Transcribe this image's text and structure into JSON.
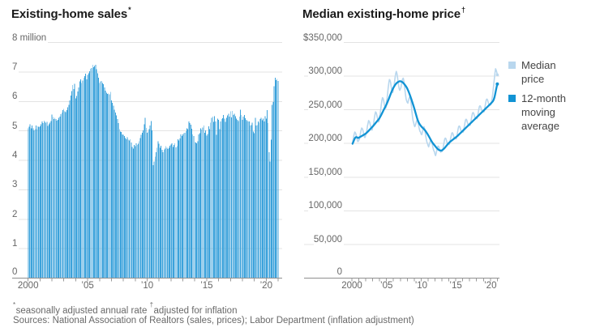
{
  "page": {
    "footnote": {
      "mark1": "*",
      "text1": "seasonally adjusted annual rate ",
      "mark2": "†",
      "text2": "adjusted for inflation",
      "sources": "Sources: National Association of Realtors (sales, prices); Labor Department (inflation adjustment)"
    }
  },
  "chart_data": [
    {
      "type": "bar",
      "title_text": "Existing-home sales",
      "title_mark": "*",
      "unit": "millions of homes, seasonally adjusted annual rate, monthly from Jan 2000 to Jan 2021",
      "bar_color": "#3ba2db",
      "grid_color": "#e3e3e3",
      "axis_color": "#8f8f8f",
      "tick_color": "#9a9a9a",
      "ylim": [
        0,
        8
      ],
      "yticks": [
        {
          "v": 8,
          "label": "8 million"
        },
        {
          "v": 7,
          "label": "7"
        },
        {
          "v": 6,
          "label": "6"
        },
        {
          "v": 5,
          "label": "5"
        },
        {
          "v": 4,
          "label": "4"
        },
        {
          "v": 3,
          "label": "3"
        },
        {
          "v": 2,
          "label": "2"
        },
        {
          "v": 1,
          "label": "1"
        },
        {
          "v": 0,
          "label": "0"
        }
      ],
      "xticks": [
        {
          "label": "2000",
          "year_offset": 0
        },
        {
          "label": "’05",
          "year_offset": 5
        },
        {
          "label": "’10",
          "year_offset": 10
        },
        {
          "label": "’15",
          "year_offset": 15
        },
        {
          "label": "’20",
          "year_offset": 20
        }
      ],
      "start_year": 2000,
      "values": [
        5.08,
        5.14,
        5.22,
        5.09,
        5.18,
        5.09,
        5.02,
        5.06,
        5.18,
        5.06,
        5.16,
        5.13,
        5.16,
        5.22,
        5.32,
        5.26,
        5.35,
        5.31,
        5.27,
        5.3,
        5.17,
        5.23,
        5.28,
        5.34,
        5.55,
        5.47,
        5.4,
        5.44,
        5.4,
        5.35,
        5.38,
        5.44,
        5.49,
        5.57,
        5.62,
        5.71,
        5.74,
        5.66,
        5.63,
        5.71,
        5.8,
        5.89,
        6.03,
        6.2,
        6.35,
        6.55,
        6.42,
        6.6,
        6.1,
        6.18,
        6.34,
        6.48,
        6.68,
        6.75,
        6.62,
        6.71,
        6.8,
        6.86,
        6.94,
        6.75,
        6.9,
        6.95,
        7.02,
        7.1,
        7.14,
        7.25,
        7.16,
        7.2,
        7.24,
        7.09,
        6.95,
        6.8,
        6.62,
        6.68,
        6.7,
        6.63,
        6.58,
        6.47,
        6.36,
        6.3,
        6.25,
        6.27,
        6.24,
        6.32,
        6.04,
        5.95,
        5.85,
        5.72,
        5.62,
        5.53,
        5.4,
        5.26,
        5.06,
        4.98,
        4.96,
        4.88,
        4.86,
        4.82,
        4.76,
        4.72,
        4.78,
        4.7,
        4.68,
        4.72,
        4.6,
        4.46,
        4.4,
        4.52,
        4.48,
        4.58,
        4.52,
        4.57,
        4.64,
        4.76,
        4.86,
        4.94,
        5.02,
        5.22,
        5.44,
        5.1,
        4.94,
        4.98,
        5.06,
        5.18,
        5.34,
        5.02,
        3.84,
        3.96,
        4.12,
        4.28,
        4.43,
        4.64,
        4.56,
        4.42,
        4.5,
        4.36,
        4.28,
        4.36,
        4.4,
        4.48,
        4.42,
        4.38,
        4.42,
        4.5,
        4.54,
        4.58,
        4.46,
        4.52,
        4.58,
        4.44,
        4.48,
        4.72,
        4.68,
        4.74,
        4.88,
        4.82,
        4.88,
        4.92,
        4.94,
        4.99,
        5.08,
        5.06,
        5.32,
        5.26,
        5.21,
        5.07,
        4.88,
        4.83,
        4.62,
        4.6,
        4.58,
        4.64,
        4.88,
        4.92,
        5.08,
        5.04,
        5.12,
        5.18,
        4.94,
        5.02,
        4.84,
        4.9,
        5.16,
        5.06,
        5.28,
        5.44,
        5.48,
        5.3,
        5.5,
        5.32,
        4.86,
        5.42,
        5.38,
        5.06,
        5.32,
        5.4,
        5.43,
        5.54,
        5.42,
        5.3,
        5.44,
        5.52,
        5.58,
        5.48,
        5.66,
        5.46,
        5.68,
        5.54,
        5.58,
        5.5,
        5.42,
        5.38,
        5.34,
        5.48,
        5.72,
        5.54,
        5.38,
        5.48,
        5.54,
        5.43,
        5.38,
        5.34,
        5.32,
        5.32,
        5.18,
        5.2,
        5.28,
        4.98,
        4.92,
        5.44,
        5.18,
        5.2,
        5.32,
        5.28,
        5.4,
        5.44,
        5.36,
        5.42,
        5.32,
        5.5,
        5.42,
        5.7,
        5.27,
        4.28,
        3.96,
        4.7,
        5.88,
        5.98,
        6.52,
        6.8,
        6.72,
        6.76,
        6.69
      ]
    },
    {
      "type": "line",
      "title_text": "Median existing-home price",
      "title_mark": "†",
      "unit": "USD thousands, inflation-adjusted, monthly from Jan 2000 to Jan 2021",
      "grid_color": "#e3e3e3",
      "axis_color": "#8f8f8f",
      "tick_color": "#9a9a9a",
      "ylim": [
        0,
        350
      ],
      "yticks": [
        {
          "v": 350,
          "label": "$350,000"
        },
        {
          "v": 300,
          "label": "300,000"
        },
        {
          "v": 250,
          "label": "250,000"
        },
        {
          "v": 200,
          "label": "200,000"
        },
        {
          "v": 150,
          "label": "150,000"
        },
        {
          "v": 100,
          "label": "100,000"
        },
        {
          "v": 50,
          "label": "50,000"
        },
        {
          "v": 0,
          "label": "0"
        }
      ],
      "xticks": [
        {
          "label": "2000",
          "year_offset": 0
        },
        {
          "label": "’05",
          "year_offset": 5
        },
        {
          "label": "’10",
          "year_offset": 10
        },
        {
          "label": "’15",
          "year_offset": 15
        },
        {
          "label": "’20",
          "year_offset": 20
        }
      ],
      "start_year": 2000,
      "series": [
        {
          "name": "Median price",
          "color": "#b9d7ee",
          "values": [
            199,
            200,
            205,
            210,
            214,
            217,
            216,
            214,
            210,
            206,
            203,
            203,
            205,
            206,
            211,
            216,
            220,
            223,
            222,
            220,
            216,
            212,
            209,
            209,
            213,
            215,
            220,
            226,
            230,
            234,
            233,
            231,
            227,
            223,
            220,
            220,
            224,
            226,
            232,
            238,
            243,
            247,
            246,
            243,
            239,
            235,
            232,
            233,
            241,
            244,
            251,
            258,
            264,
            268,
            267,
            264,
            259,
            255,
            252,
            253,
            263,
            267,
            275,
            283,
            290,
            295,
            294,
            291,
            285,
            280,
            276,
            276,
            282,
            285,
            292,
            299,
            304,
            307,
            304,
            299,
            292,
            286,
            281,
            279,
            281,
            283,
            288,
            293,
            296,
            297,
            293,
            287,
            279,
            272,
            266,
            263,
            261,
            260,
            264,
            267,
            269,
            269,
            264,
            257,
            248,
            240,
            234,
            231,
            227,
            225,
            227,
            230,
            233,
            235,
            233,
            230,
            225,
            221,
            218,
            217,
            214,
            213,
            216,
            220,
            223,
            225,
            222,
            217,
            211,
            206,
            202,
            200,
            197,
            195,
            198,
            201,
            204,
            206,
            204,
            201,
            196,
            192,
            189,
            188,
            184,
            182,
            185,
            189,
            193,
            196,
            196,
            194,
            191,
            189,
            187,
            188,
            188,
            189,
            193,
            198,
            203,
            207,
            208,
            207,
            204,
            201,
            199,
            200,
            199,
            199,
            203,
            207,
            211,
            215,
            216,
            215,
            212,
            209,
            207,
            208,
            207,
            207,
            211,
            216,
            221,
            225,
            226,
            225,
            222,
            219,
            217,
            218,
            217,
            217,
            221,
            226,
            231,
            235,
            236,
            235,
            232,
            229,
            227,
            228,
            227,
            227,
            231,
            236,
            241,
            245,
            246,
            245,
            242,
            239,
            237,
            238,
            237,
            237,
            241,
            246,
            251,
            255,
            256,
            255,
            252,
            249,
            247,
            248,
            247,
            247,
            251,
            256,
            261,
            265,
            266,
            265,
            262,
            259,
            257,
            258,
            257,
            258,
            262,
            267,
            273,
            281,
            289,
            297,
            305,
            311,
            309,
            306,
            302
          ]
        },
        {
          "name": "12-month moving average",
          "color": "#1193d4",
          "derived": "trailing 12-month mean of Median price series"
        }
      ]
    }
  ]
}
